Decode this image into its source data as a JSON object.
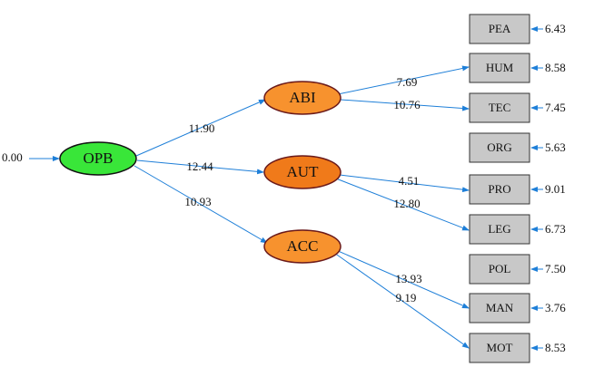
{
  "start_label": "0.00",
  "nodes": [
    {
      "label": "OPB"
    },
    {
      "label": "ABI"
    },
    {
      "label": "AUT"
    },
    {
      "label": "ACC"
    }
  ],
  "edges": [
    {
      "label": "11.90"
    },
    {
      "label": "12.44"
    },
    {
      "label": "10.93"
    },
    {
      "label": "7.69"
    },
    {
      "label": "10.76"
    },
    {
      "label": "4.51"
    },
    {
      "label": "12.80"
    },
    {
      "label": "13.93"
    },
    {
      "label": "9.19"
    }
  ],
  "boxes": [
    {
      "label": "PEA",
      "error": "6.43"
    },
    {
      "label": "HUM",
      "error": "8.58"
    },
    {
      "label": "TEC",
      "error": "7.45"
    },
    {
      "label": "ORG",
      "error": "5.63"
    },
    {
      "label": "PRO",
      "error": "9.01"
    },
    {
      "label": "LEG",
      "error": "6.73"
    },
    {
      "label": "POL",
      "error": "7.50"
    },
    {
      "label": "MAN",
      "error": "3.76"
    },
    {
      "label": "MOT",
      "error": "8.53"
    }
  ]
}
